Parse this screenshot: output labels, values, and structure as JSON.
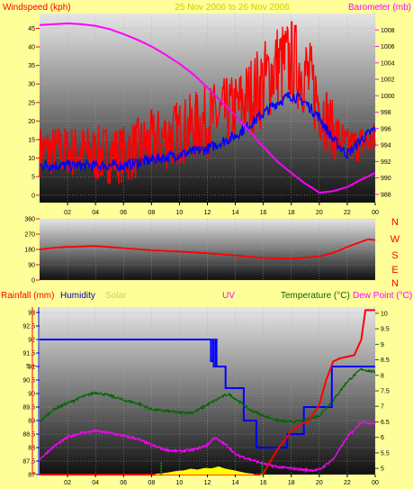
{
  "colors": {
    "background": "#ffff99",
    "windspeed": "#ff0000",
    "windavg": "#0000ff",
    "barometer": "#ff00ff",
    "direction": "#ff0000",
    "rainfall": "#ff0000",
    "humidity": "#0000ff",
    "solar": "#ffff00",
    "uv": "#00aa00",
    "temperature": "#006600",
    "dewpoint": "#ff00ff",
    "plot_top": "#e6e6e6",
    "plot_bottom": "#101010",
    "title": "#cccc00"
  },
  "time_ticks": [
    "02",
    "04",
    "06",
    "08",
    "10",
    "12",
    "14",
    "16",
    "18",
    "20",
    "22",
    "00"
  ],
  "top_chart": {
    "title": "25 Nov 2006 to 26 Nov 2006",
    "left_label": "Windspeed (kph)",
    "right_label": "Barometer (mb)"
  },
  "dir_chart": {
    "compass": [
      "N",
      "W",
      "S",
      "E",
      "N"
    ]
  },
  "bottom_chart": {
    "labels": {
      "rainfall": "Rainfall (mm)",
      "humidity": "Humidity",
      "solar": "Solar",
      "uv": "UV",
      "temperature": "Temperature (°C)",
      "dewpoint": "Dew Point (°C)"
    },
    "rain_tick": "5"
  },
  "chart_data": [
    {
      "type": "line",
      "x_unit": "hour",
      "x_range": [
        0,
        24
      ],
      "series": [
        {
          "name": "Windspeed (kph)",
          "axis": "left",
          "style": "noisy",
          "x": [
            0,
            2,
            4,
            6,
            8,
            10,
            12,
            14,
            16,
            17,
            18,
            19,
            20,
            21,
            22,
            23,
            24
          ],
          "y": [
            12,
            12,
            11,
            11,
            14,
            17,
            20,
            23,
            30,
            35,
            36,
            33,
            25,
            17,
            13,
            14,
            15
          ],
          "amp": [
            7,
            7,
            8,
            8,
            9,
            9,
            10,
            10,
            12,
            12,
            12,
            12,
            11,
            8,
            5,
            5,
            5
          ]
        },
        {
          "name": "Windspeed avg (kph)",
          "axis": "left",
          "style": "noisy",
          "x": [
            0,
            2,
            4,
            6,
            8,
            10,
            12,
            14,
            16,
            17,
            18,
            19,
            20,
            21,
            22,
            23,
            24
          ],
          "y": [
            8,
            8,
            8,
            8,
            9.5,
            11,
            12.5,
            16,
            22,
            25,
            27,
            25,
            21,
            15,
            11,
            15,
            18
          ],
          "amp": [
            1.5,
            1.5,
            1.5,
            1.5,
            1.5,
            1.5,
            1.5,
            1.5,
            1.5,
            1.5,
            1.5,
            1.5,
            1.5,
            1.5,
            1.5,
            1.5,
            1.5
          ]
        },
        {
          "name": "Barometer (mb)",
          "axis": "right",
          "style": "smooth",
          "x": [
            0,
            1,
            2,
            3,
            4,
            5,
            6,
            7,
            8,
            9,
            10,
            11,
            12,
            13,
            14,
            15,
            16,
            17,
            18,
            19,
            19.5,
            20,
            21,
            22,
            23,
            24
          ],
          "y": [
            1008.6,
            1008.7,
            1008.8,
            1008.7,
            1008.5,
            1008.1,
            1007.5,
            1006.8,
            1006.0,
            1005.0,
            1003.9,
            1002.6,
            1001.0,
            999.3,
            997.6,
            995.7,
            993.8,
            992.0,
            990.6,
            989.3,
            988.8,
            988.2,
            988.4,
            988.9,
            989.8,
            990.6
          ]
        }
      ],
      "y_left": {
        "ticks": [
          0,
          5,
          10,
          15,
          20,
          25,
          30,
          35,
          40,
          45
        ],
        "range": [
          -2,
          49
        ]
      },
      "y_right": {
        "ticks": [
          988,
          990,
          992,
          994,
          996,
          998,
          1000,
          1002,
          1004,
          1006,
          1008
        ],
        "range": [
          987,
          1010
        ]
      }
    },
    {
      "type": "line",
      "x_unit": "hour",
      "x_range": [
        0,
        24
      ],
      "series": [
        {
          "name": "Wind direction (°)",
          "axis": "left",
          "style": "smooth",
          "x": [
            0,
            1,
            2,
            4,
            6,
            8,
            10,
            12,
            14,
            16,
            18,
            20,
            21,
            22,
            23,
            23.5,
            24
          ],
          "y": [
            180,
            190,
            195,
            200,
            188,
            175,
            168,
            158,
            145,
            130,
            125,
            140,
            160,
            195,
            225,
            240,
            235
          ]
        }
      ],
      "y_left": {
        "ticks": [
          0,
          90,
          180,
          270,
          360
        ],
        "range": [
          0,
          360
        ]
      }
    },
    {
      "type": "line",
      "x_unit": "hour",
      "x_range": [
        0,
        24
      ],
      "series": [
        {
          "name": "Humidity",
          "axis": "left",
          "style": "step",
          "x": [
            0,
            12.2,
            12.25,
            12.4,
            12.45,
            12.6,
            12.65,
            13.3,
            14.6,
            15.5,
            17.7,
            18.9,
            20.9,
            24
          ],
          "y": [
            92,
            92,
            91.2,
            92,
            91,
            92,
            91,
            90.2,
            89,
            88,
            88.5,
            89.5,
            91,
            91
          ]
        },
        {
          "name": "Temperature (°C)",
          "axis": "right",
          "style": "noisy",
          "x": [
            0,
            1,
            2,
            3,
            4,
            5,
            6,
            7,
            8,
            9,
            10,
            11,
            12,
            13,
            13.5,
            14,
            15,
            16,
            17,
            18,
            19,
            20,
            21,
            22,
            23,
            24
          ],
          "y": [
            6.5,
            6.9,
            7.1,
            7.3,
            7.45,
            7.35,
            7.2,
            7.1,
            6.9,
            6.85,
            6.8,
            6.8,
            7.05,
            7.3,
            7.4,
            7.25,
            6.9,
            6.7,
            6.55,
            6.5,
            6.55,
            6.7,
            7.2,
            7.8,
            8.2,
            8.1
          ],
          "amp": [
            0.04,
            0.04,
            0.04,
            0.04,
            0.04,
            0.04,
            0.04,
            0.04,
            0.04,
            0.04,
            0.04,
            0.04,
            0.04,
            0.04,
            0.04,
            0.04,
            0.04,
            0.04,
            0.04,
            0.04,
            0.04,
            0.04,
            0.04,
            0.04,
            0.04,
            0.04
          ]
        },
        {
          "name": "Dew Point (°C)",
          "axis": "right",
          "style": "noisy",
          "x": [
            0,
            1,
            2,
            3,
            4,
            5,
            6,
            7,
            8,
            9,
            10,
            11,
            12,
            12.5,
            13,
            13.5,
            14,
            15,
            16,
            17,
            18,
            19,
            20,
            21,
            22,
            23,
            24
          ],
          "y": [
            5.3,
            5.7,
            6.0,
            6.15,
            6.2,
            6.15,
            6.05,
            5.95,
            5.75,
            5.6,
            5.55,
            5.6,
            5.75,
            6.0,
            5.85,
            5.7,
            5.45,
            5.3,
            5.15,
            5.05,
            5.0,
            4.95,
            4.95,
            5.3,
            6.0,
            6.5,
            6.45
          ],
          "amp": [
            0.04,
            0.04,
            0.04,
            0.04,
            0.04,
            0.04,
            0.04,
            0.04,
            0.04,
            0.04,
            0.04,
            0.04,
            0.04,
            0.04,
            0.04,
            0.04,
            0.04,
            0.04,
            0.04,
            0.04,
            0.04,
            0.04,
            0.04,
            0.04,
            0.04,
            0.04,
            0.04
          ]
        },
        {
          "name": "Rainfall (mm)",
          "axis": "right",
          "style": "linear",
          "x": [
            0,
            15.7,
            16.0,
            17.0,
            18.0,
            18.8,
            19.2,
            20.0,
            20.5,
            21.0,
            21.5,
            22.0,
            22.5,
            23.0,
            23.3,
            24
          ],
          "y": [
            4.8,
            4.8,
            4.85,
            5.6,
            6.2,
            6.45,
            6.5,
            7.05,
            7.85,
            8.45,
            8.55,
            8.6,
            8.65,
            9.15,
            10.1,
            10.1
          ]
        },
        {
          "name": "Solar",
          "axis": "left",
          "style": "area",
          "x": [
            8.3,
            8.8,
            9.3,
            9.8,
            10.3,
            10.8,
            11.3,
            11.8,
            12.3,
            12.8,
            13.3,
            13.8,
            14.3,
            14.8,
            15.3
          ],
          "y": [
            87.02,
            87.05,
            87.08,
            87.12,
            87.15,
            87.2,
            87.18,
            87.25,
            87.22,
            87.28,
            87.2,
            87.15,
            87.1,
            87.06,
            87.03
          ]
        },
        {
          "name": "UV",
          "axis": "left",
          "style": "markers",
          "x": [
            8.7,
            15.9
          ],
          "y": [
            87.05,
            87.05
          ]
        }
      ],
      "y_left": {
        "ticks": [
          87,
          87.5,
          88,
          88.5,
          89,
          89.5,
          90,
          90.5,
          91,
          91.5,
          92,
          92.5,
          93
        ],
        "range": [
          87,
          93.2
        ]
      },
      "y_right": {
        "ticks": [
          5,
          5.5,
          6,
          6.5,
          7,
          7.5,
          8,
          8.5,
          9,
          9.5,
          10
        ],
        "range": [
          4.8,
          10.2
        ]
      }
    }
  ]
}
